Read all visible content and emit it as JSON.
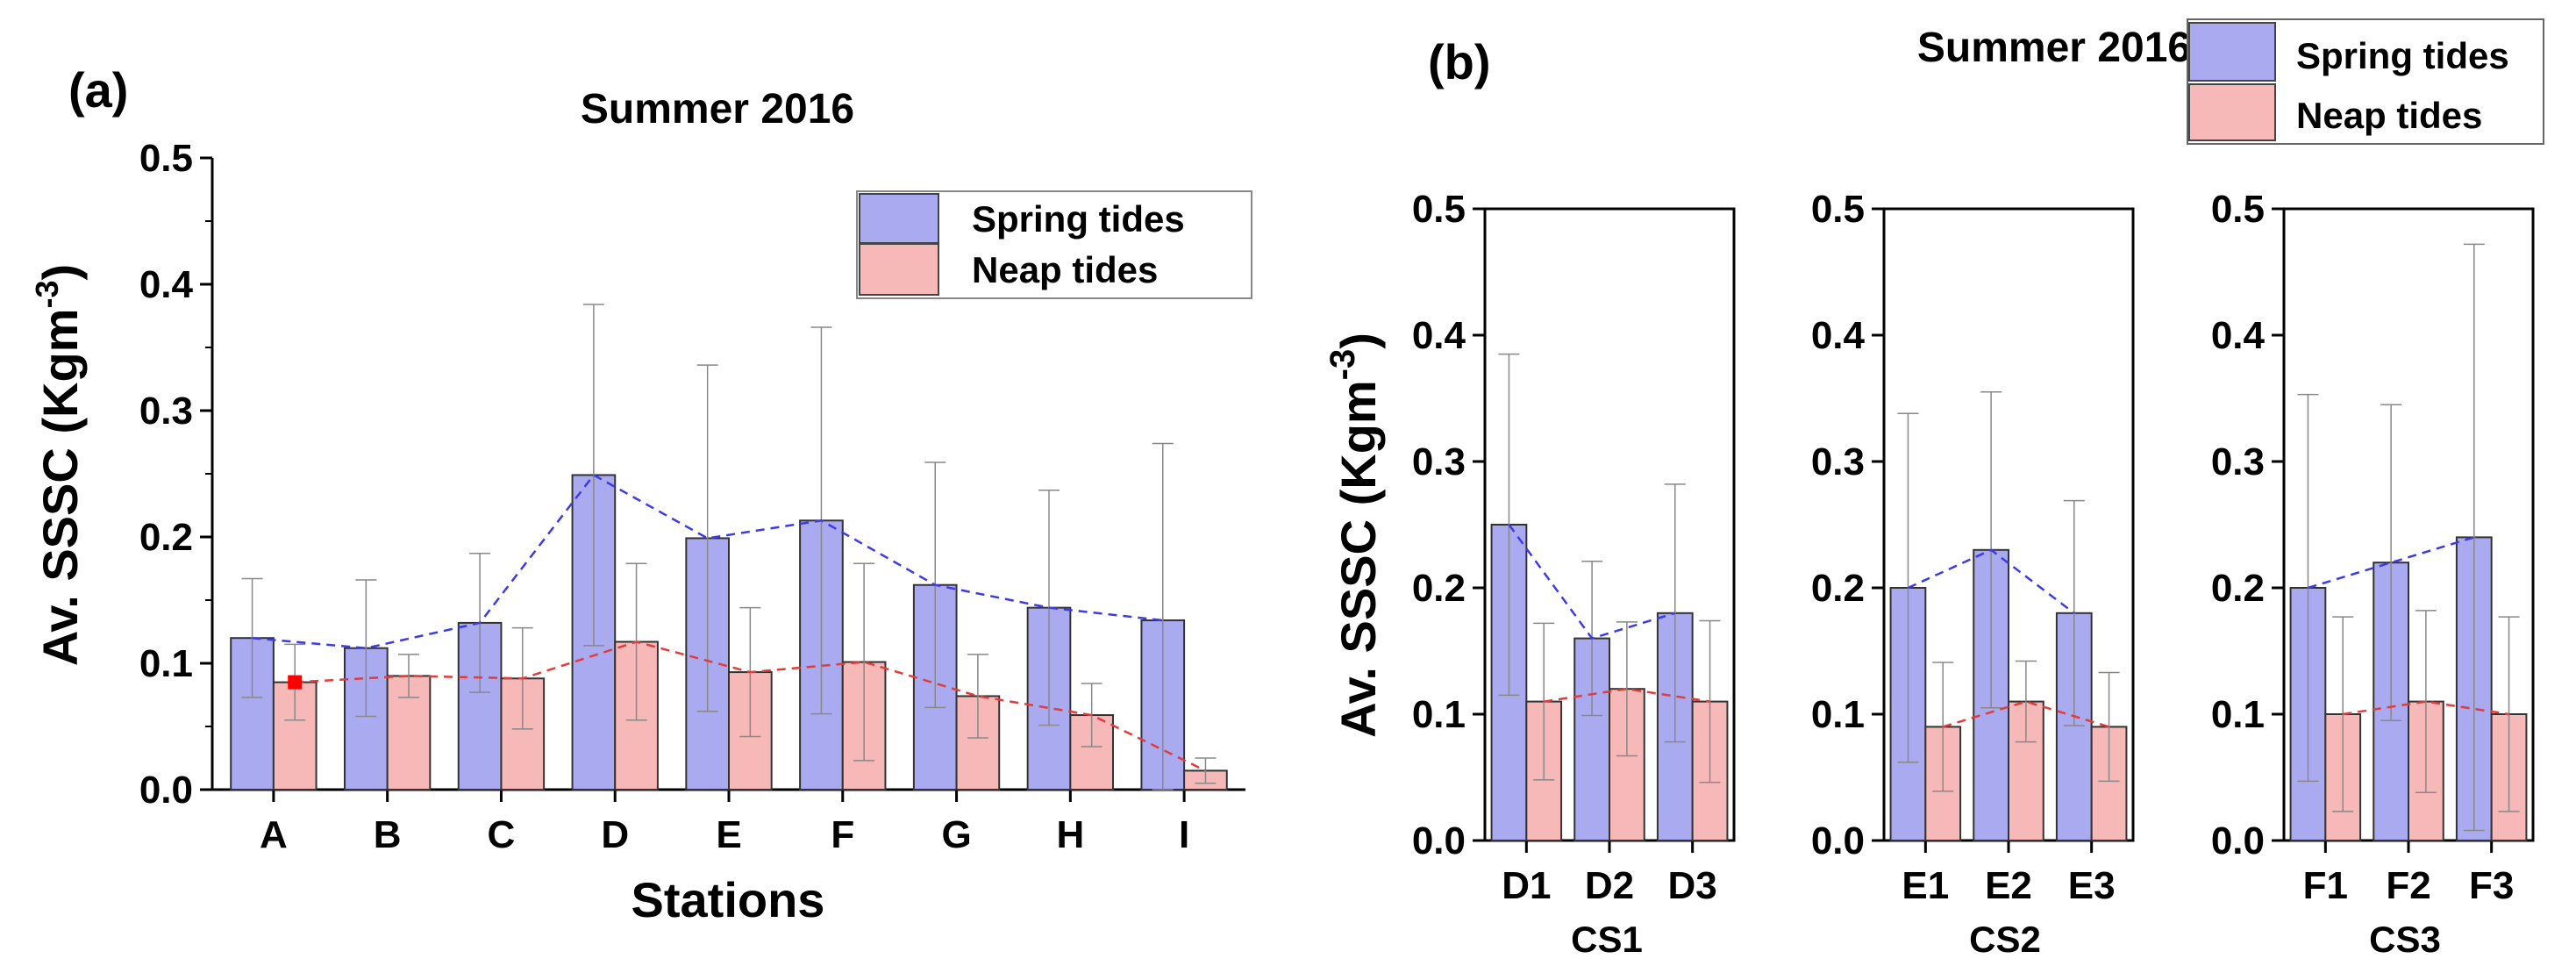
{
  "figure": {
    "panel_a_label": "(a)",
    "panel_b_label": "(b)",
    "ylabel_prefix": "Av. SSSC (Kgm",
    "ylabel_exp": "-3",
    "ylabel_suffix": ")",
    "colors": {
      "spring": "#aaaaf0",
      "neap": "#f7b8b8",
      "spring_line": "#3c3ce6",
      "neap_line": "#e03c3c"
    }
  },
  "chart_data": [
    {
      "type": "bar",
      "panel": "(a)",
      "title": "Summer 2016",
      "xlabel": "Stations",
      "ylabel": "Av. SSSC (Kgm-3)",
      "ylim": [
        0,
        0.5
      ],
      "yticks": [
        "0.0",
        "0.1",
        "0.2",
        "0.3",
        "0.4",
        "0.5"
      ],
      "categories": [
        "A",
        "B",
        "C",
        "D",
        "E",
        "F",
        "G",
        "H",
        "I"
      ],
      "legend": [
        "Spring tides",
        "Neap tides"
      ],
      "legend_position": "top-right",
      "series": [
        {
          "name": "Spring tides",
          "values": [
            0.12,
            0.112,
            0.132,
            0.249,
            0.199,
            0.213,
            0.162,
            0.144,
            0.134
          ],
          "error": [
            0.047,
            0.054,
            0.055,
            0.135,
            0.137,
            0.153,
            0.097,
            0.093,
            0.14
          ]
        },
        {
          "name": "Neap tides",
          "values": [
            0.085,
            0.09,
            0.088,
            0.117,
            0.093,
            0.101,
            0.074,
            0.059,
            0.015
          ],
          "error": [
            0.03,
            0.017,
            0.04,
            0.062,
            0.051,
            0.078,
            0.033,
            0.025,
            0.01
          ]
        }
      ]
    },
    {
      "type": "bar",
      "panel": "(b)",
      "title": "Summer 2016",
      "ylabel": "Av. SSSC (Kgm-3)",
      "ylim": [
        0,
        0.5
      ],
      "yticks": [
        "0.0",
        "0.1",
        "0.2",
        "0.3",
        "0.4",
        "0.5"
      ],
      "legend": [
        "Spring tides",
        "Neap tides"
      ],
      "legend_position": "top-right",
      "subplots": [
        {
          "group": "CS1",
          "categories": [
            "D1",
            "D2",
            "D3"
          ],
          "series": [
            {
              "name": "Spring tides",
              "values": [
                0.25,
                0.16,
                0.18
              ],
              "error": [
                0.135,
                0.061,
                0.102
              ]
            },
            {
              "name": "Neap tides",
              "values": [
                0.11,
                0.12,
                0.11
              ],
              "error": [
                0.062,
                0.053,
                0.064
              ]
            }
          ]
        },
        {
          "group": "CS2",
          "categories": [
            "E1",
            "E2",
            "E3"
          ],
          "series": [
            {
              "name": "Spring tides",
              "values": [
                0.2,
                0.23,
                0.18
              ],
              "error": [
                0.138,
                0.125,
                0.089
              ]
            },
            {
              "name": "Neap tides",
              "values": [
                0.09,
                0.11,
                0.09
              ],
              "error": [
                0.051,
                0.032,
                0.043
              ]
            }
          ]
        },
        {
          "group": "CS3",
          "categories": [
            "F1",
            "F2",
            "F3"
          ],
          "series": [
            {
              "name": "Spring tides",
              "values": [
                0.2,
                0.22,
                0.24
              ],
              "error": [
                0.153,
                0.125,
                0.232
              ]
            },
            {
              "name": "Neap tides",
              "values": [
                0.1,
                0.11,
                0.1
              ],
              "error": [
                0.077,
                0.072,
                0.077
              ]
            }
          ]
        }
      ]
    }
  ]
}
